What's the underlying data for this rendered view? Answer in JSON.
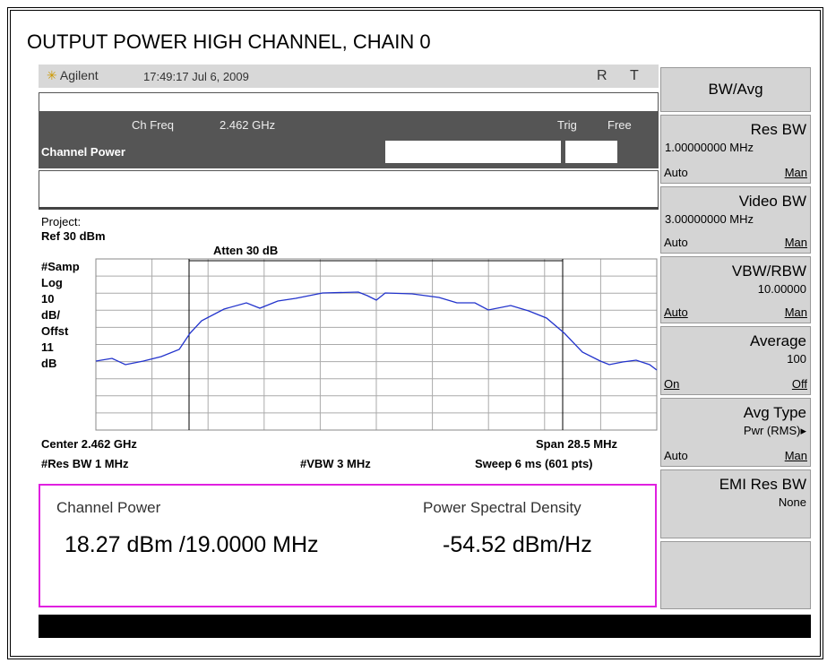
{
  "title": "OUTPUT POWER HIGH CHANNEL, CHAIN 0",
  "header": {
    "brand": "Agilent",
    "timestamp": "17:49:17  Jul 6, 2009",
    "status_r": "R",
    "status_t": "T"
  },
  "channel_bar": {
    "ch_freq_label": "Ch Freq",
    "ch_freq": "2.462 GHz",
    "trig_label": "Trig",
    "trig": "Free",
    "mode": "Channel Power"
  },
  "graph": {
    "project": "Project:",
    "ref": "Ref 30 dBm",
    "atten": "Atten 30 dB",
    "left_labels": [
      "#Samp",
      "Log",
      "10",
      "dB/",
      "Offst",
      "11",
      "dB"
    ],
    "center": "Center 2.462 GHz",
    "span": "Span 28.5 MHz",
    "res_bw": "#Res BW 1 MHz",
    "vbw": "#VBW 3 MHz",
    "sweep": "Sweep 6 ms (601 pts)"
  },
  "results": {
    "channel_power_label": "Channel Power",
    "psd_label": "Power Spectral Density",
    "channel_power": "18.27 dBm /19.0000 MHz",
    "psd": "-54.52 dBm/Hz"
  },
  "softkeys": [
    {
      "title": "BW/Avg"
    },
    {
      "title": "Res BW",
      "value": "1.00000000 MHz",
      "left": "Auto",
      "right": "Man"
    },
    {
      "title": "Video BW",
      "value": "3.00000000 MHz",
      "left": "Auto",
      "right": "Man"
    },
    {
      "title": "VBW/RBW",
      "value": "10.00000",
      "left": "Auto",
      "right": "Man"
    },
    {
      "title": "Average",
      "value": "100",
      "left": "On",
      "right": "Off"
    },
    {
      "title": "Avg Type",
      "value": "Pwr (RMS)▸",
      "left": "Auto",
      "right": "Man"
    },
    {
      "title": "EMI Res BW",
      "value": "None"
    }
  ]
}
